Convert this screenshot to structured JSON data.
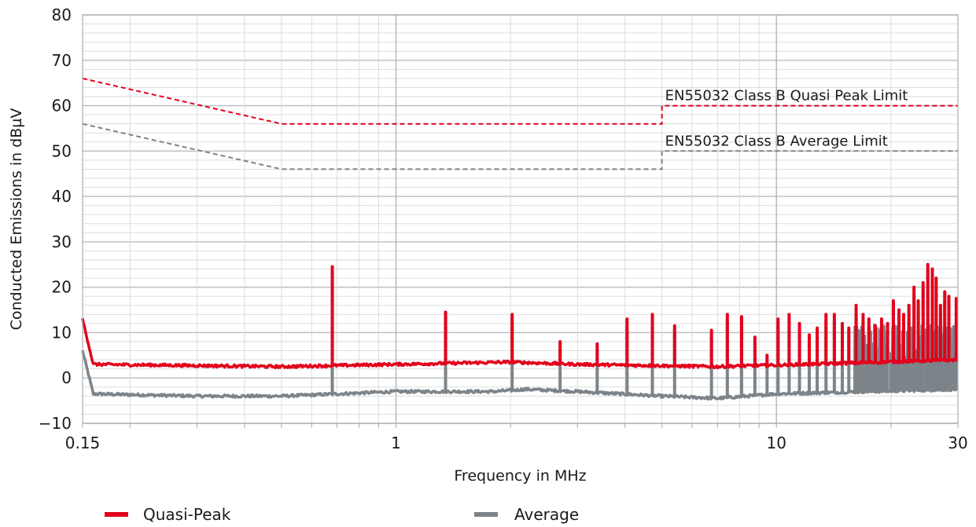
{
  "chart_data": {
    "type": "line",
    "xlabel": "Frequency in MHz",
    "ylabel": "Conducted Emissions in dBµV",
    "x_scale": "log",
    "xlim": [
      0.15,
      30
    ],
    "ylim": [
      -10,
      80
    ],
    "x_ticks": [
      {
        "value": 0.15,
        "label": "0.15"
      },
      {
        "value": 1,
        "label": "1"
      },
      {
        "value": 10,
        "label": "10"
      },
      {
        "value": 30,
        "label": "30"
      }
    ],
    "y_ticks": [
      -10,
      0,
      10,
      20,
      30,
      40,
      50,
      60,
      70,
      80
    ],
    "grid": true,
    "legend_position": "bottom",
    "limits": [
      {
        "name": "EN55032 Class B Quasi Peak Limit",
        "color": "#e3001b",
        "x": [
          0.15,
          0.5,
          5,
          5,
          30
        ],
        "y": [
          66,
          56,
          56,
          60,
          60
        ]
      },
      {
        "name": "EN55032 Class B Average Limit",
        "color": "#7d8489",
        "x": [
          0.15,
          0.5,
          5,
          5,
          30
        ],
        "y": [
          56,
          46,
          46,
          50,
          50
        ]
      }
    ],
    "series": [
      {
        "name": "Quasi-Peak",
        "color": "#e3001b",
        "baseline": [
          [
            0.15,
            13
          ],
          [
            0.16,
            3
          ],
          [
            0.5,
            2.5
          ],
          [
            1,
            3
          ],
          [
            2,
            3.5
          ],
          [
            3,
            3
          ],
          [
            7,
            2.5
          ],
          [
            12,
            3
          ],
          [
            30,
            4
          ]
        ],
        "spikes": [
          [
            0.68,
            24.5
          ],
          [
            1.35,
            14.5
          ],
          [
            2.02,
            14
          ],
          [
            2.7,
            8
          ],
          [
            3.38,
            7.5
          ],
          [
            4.05,
            13
          ],
          [
            4.72,
            14
          ],
          [
            5.4,
            11.5
          ],
          [
            6.75,
            10.5
          ],
          [
            7.43,
            14
          ],
          [
            8.1,
            13.5
          ],
          [
            8.78,
            9
          ],
          [
            9.45,
            5
          ],
          [
            10.1,
            13
          ],
          [
            10.8,
            14
          ],
          [
            11.5,
            12
          ],
          [
            12.2,
            9.5
          ],
          [
            12.8,
            11
          ],
          [
            13.5,
            14
          ],
          [
            14.2,
            14
          ],
          [
            14.9,
            12
          ],
          [
            15.5,
            11
          ],
          [
            16.2,
            16
          ],
          [
            16.9,
            14
          ],
          [
            17.5,
            13
          ],
          [
            18.2,
            11.5
          ],
          [
            18.9,
            13
          ],
          [
            19.6,
            12
          ],
          [
            20.3,
            17
          ],
          [
            21,
            15
          ],
          [
            21.6,
            14
          ],
          [
            22.3,
            16
          ],
          [
            23,
            20
          ],
          [
            23.6,
            17
          ],
          [
            24.3,
            21
          ],
          [
            25,
            25
          ],
          [
            25.7,
            24
          ],
          [
            26.3,
            22
          ],
          [
            27,
            16
          ],
          [
            27.7,
            19
          ],
          [
            28.4,
            18
          ],
          [
            29.7,
            17.5
          ]
        ]
      },
      {
        "name": "Average",
        "color": "#7d8489",
        "baseline": [
          [
            0.15,
            6
          ],
          [
            0.16,
            -3.5
          ],
          [
            0.3,
            -4
          ],
          [
            0.5,
            -4
          ],
          [
            1,
            -3
          ],
          [
            1.8,
            -3
          ],
          [
            2.2,
            -2.5
          ],
          [
            3,
            -3
          ],
          [
            5,
            -4
          ],
          [
            7,
            -4.5
          ],
          [
            10,
            -3.5
          ],
          [
            30,
            -2.5
          ]
        ],
        "spikes": [
          [
            0.68,
            23.5
          ],
          [
            1.35,
            13.5
          ],
          [
            2.02,
            12.5
          ],
          [
            2.7,
            6.5
          ],
          [
            3.38,
            6
          ],
          [
            4.05,
            11.5
          ],
          [
            4.72,
            12.5
          ],
          [
            5.4,
            10
          ],
          [
            6.75,
            9
          ],
          [
            7.43,
            12.5
          ],
          [
            8.1,
            12
          ],
          [
            8.78,
            7.5
          ],
          [
            9.45,
            3.5
          ],
          [
            10.1,
            11.5
          ],
          [
            10.8,
            12.5
          ],
          [
            11.5,
            10.5
          ],
          [
            12.2,
            8
          ],
          [
            12.8,
            9.5
          ],
          [
            13.5,
            12.5
          ],
          [
            14.2,
            12.5
          ],
          [
            14.9,
            10.5
          ],
          [
            15.5,
            9.5
          ],
          [
            16.2,
            14
          ],
          [
            16.9,
            12.5
          ],
          [
            17.5,
            11.5
          ],
          [
            18.2,
            10
          ],
          [
            18.9,
            11.5
          ],
          [
            19.6,
            10.5
          ],
          [
            20.3,
            15
          ],
          [
            21,
            13
          ],
          [
            21.6,
            12.5
          ],
          [
            22.3,
            14
          ],
          [
            23,
            18
          ],
          [
            23.6,
            15
          ],
          [
            24.3,
            19
          ],
          [
            25,
            23
          ],
          [
            25.7,
            22
          ],
          [
            26.3,
            20
          ],
          [
            27,
            14
          ],
          [
            27.7,
            17
          ],
          [
            28.4,
            15
          ],
          [
            29.7,
            15
          ]
        ]
      }
    ]
  },
  "legend": {
    "quasi_peak_label": "Quasi-Peak",
    "average_label": "Average",
    "quasi_peak_color": "#e3001b",
    "average_color": "#7d8489"
  }
}
